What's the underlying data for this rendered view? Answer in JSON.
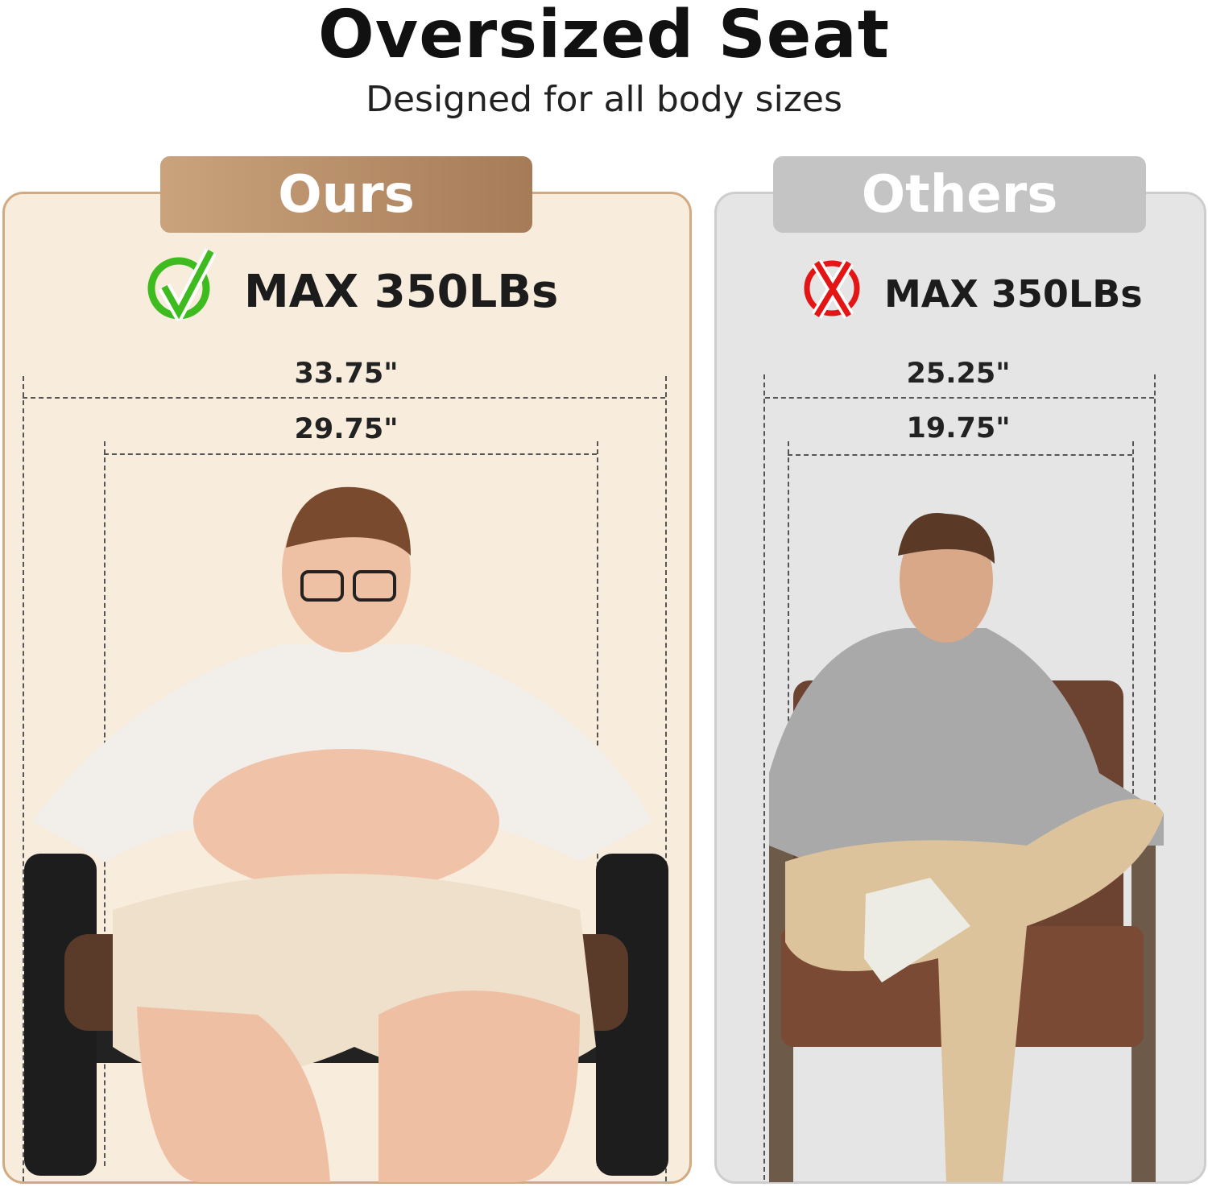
{
  "header": {
    "title": "Oversized Seat",
    "subtitle": "Designed for all body sizes"
  },
  "ours": {
    "tab_label": "Ours",
    "status_icon": "green-check-icon",
    "capacity": "MAX 350LBs",
    "overall_width": "33.75\"",
    "seat_width": "29.75\"",
    "accent": "#b58b64"
  },
  "others": {
    "tab_label": "Others",
    "status_icon": "red-x-icon",
    "capacity": "MAX 350LBs",
    "overall_width": "25.25\"",
    "seat_width": "19.75\"",
    "accent": "#c4c4c4"
  }
}
